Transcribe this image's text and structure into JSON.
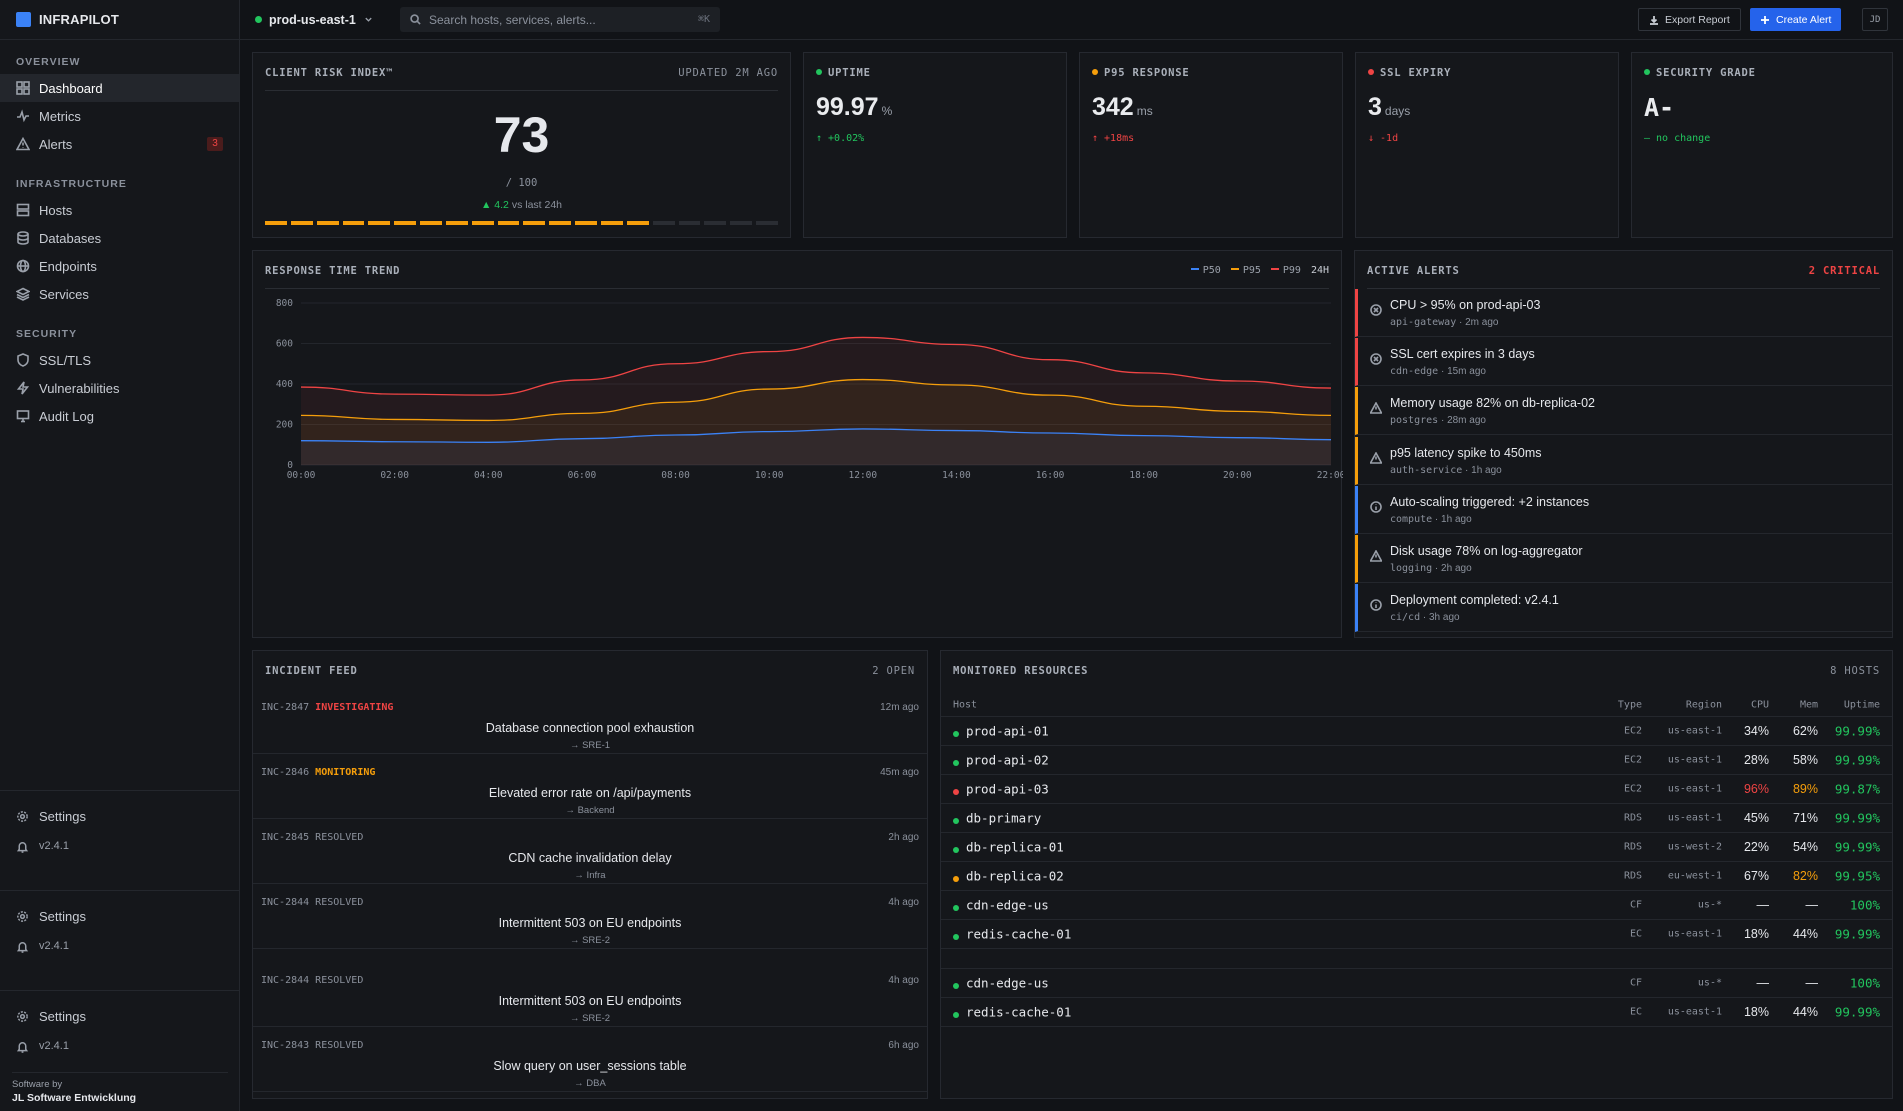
{
  "brand": {
    "name": "INFRAPILOT"
  },
  "sidebar": {
    "sections": [
      {
        "title": "OVERVIEW",
        "items": [
          {
            "label": "Dashboard"
          },
          {
            "label": "Metrics"
          },
          {
            "label": "Alerts",
            "badge": "3"
          }
        ]
      },
      {
        "title": "INFRASTRUCTURE",
        "items": [
          {
            "label": "Hosts"
          },
          {
            "label": "Databases"
          },
          {
            "label": "Endpoints"
          },
          {
            "label": "Services"
          }
        ]
      },
      {
        "title": "SECURITY",
        "items": [
          {
            "label": "SSL/TLS"
          },
          {
            "label": "Vulnerabilities"
          },
          {
            "label": "Audit Log"
          }
        ]
      }
    ],
    "settings_label": "Settings",
    "version": "v2.4.1",
    "footer_line1": "Software by",
    "footer_line2": "JL Software Entwicklung"
  },
  "topbar": {
    "env": "prod-us-east-1",
    "search_placeholder": "Search hosts, services, alerts...",
    "shortcut": "⌘K",
    "export_label": "Export Report",
    "create_label": "Create Alert",
    "avatar": "JD"
  },
  "risk": {
    "title": "CLIENT RISK INDEX™",
    "updated": "UPDATED 2M AGO",
    "value": "73",
    "max": "/ 100",
    "delta": "▲ 4.2",
    "delta_suffix": "vs last 24h",
    "score_fraction": 0.73
  },
  "kpis": [
    {
      "title": "UPTIME",
      "value": "99.97",
      "unit": "%",
      "delta": "↑ +0.02%",
      "status": "green",
      "delta_dir": "up"
    },
    {
      "title": "P95 RESPONSE",
      "value": "342",
      "unit": "ms",
      "delta": "↑ +18ms",
      "status": "amber",
      "delta_dir": "down"
    },
    {
      "title": "SSL EXPIRY",
      "value": "3",
      "unit": "days",
      "delta": "↓ -1d",
      "status": "red",
      "delta_dir": "down"
    },
    {
      "title": "SECURITY GRADE",
      "value": "A-",
      "unit": "",
      "delta": "— no change",
      "status": "green",
      "delta_dir": "up"
    }
  ],
  "chart": {
    "title": "RESPONSE TIME TREND",
    "range": "24H"
  },
  "chart_data": {
    "type": "area",
    "x": [
      "00:00",
      "02:00",
      "04:00",
      "06:00",
      "08:00",
      "10:00",
      "12:00",
      "14:00",
      "16:00",
      "18:00",
      "20:00",
      "22:00"
    ],
    "ylim": [
      0,
      800
    ],
    "yticks": [
      0,
      200,
      400,
      600,
      800
    ],
    "series": [
      {
        "name": "P50",
        "color": "#3b82f6",
        "values": [
          120,
          115,
          112,
          130,
          148,
          165,
          178,
          170,
          158,
          145,
          135,
          125
        ]
      },
      {
        "name": "P95",
        "color": "#f59e0b",
        "values": [
          245,
          225,
          220,
          255,
          310,
          375,
          422,
          395,
          345,
          290,
          265,
          245
        ]
      },
      {
        "name": "P99",
        "color": "#ef4444",
        "values": [
          385,
          350,
          345,
          420,
          500,
          560,
          630,
          595,
          520,
          455,
          415,
          380
        ]
      }
    ]
  },
  "alerts": {
    "title": "ACTIVE ALERTS",
    "summary": "2 CRITICAL",
    "items": [
      {
        "title": "CPU > 95% on prod-api-03",
        "source": "api-gateway",
        "time": "2m ago",
        "level": "critical",
        "icon": "x-circle-icon"
      },
      {
        "title": "SSL cert expires in 3 days",
        "source": "cdn-edge",
        "time": "15m ago",
        "level": "critical",
        "icon": "x-circle-icon"
      },
      {
        "title": "Memory usage 82% on db-replica-02",
        "source": "postgres",
        "time": "28m ago",
        "level": "warning",
        "icon": "warning-triangle-icon"
      },
      {
        "title": "p95 latency spike to 450ms",
        "source": "auth-service",
        "time": "1h ago",
        "level": "warning",
        "icon": "warning-triangle-icon"
      },
      {
        "title": "Auto-scaling triggered: +2 instances",
        "source": "compute",
        "time": "1h ago",
        "level": "info",
        "icon": "info-circle-icon"
      },
      {
        "title": "Disk usage 78% on log-aggregator",
        "source": "logging",
        "time": "2h ago",
        "level": "warning",
        "icon": "warning-triangle-icon"
      },
      {
        "title": "Deployment completed: v2.4.1",
        "source": "ci/cd",
        "time": "3h ago",
        "level": "info",
        "icon": "info-circle-icon"
      }
    ]
  },
  "incidents": {
    "title": "INCIDENT FEED",
    "summary": "2 OPEN",
    "items": [
      {
        "id": "INC-2847",
        "status": "INVESTIGATING",
        "time": "12m ago",
        "title": "Database connection pool exhaustion",
        "team": "→ SRE-1"
      },
      {
        "id": "INC-2846",
        "status": "MONITORING",
        "time": "45m ago",
        "title": "Elevated error rate on /api/payments",
        "team": "→ Backend"
      },
      {
        "id": "INC-2845",
        "status": "RESOLVED",
        "time": "2h ago",
        "title": "CDN cache invalidation delay",
        "team": "→ Infra"
      },
      {
        "id": "INC-2844",
        "status": "RESOLVED",
        "time": "4h ago",
        "title": "Intermittent 503 on EU endpoints",
        "team": "→ SRE-2"
      },
      {
        "id": "INC-2844",
        "status": "RESOLVED",
        "time": "4h ago",
        "title": "Intermittent 503 on EU endpoints",
        "team": "→ SRE-2"
      },
      {
        "id": "INC-2843",
        "status": "RESOLVED",
        "time": "6h ago",
        "title": "Slow query on user_sessions table",
        "team": "→ DBA"
      }
    ]
  },
  "resources": {
    "title": "MONITORED RESOURCES",
    "summary": "8 HOSTS",
    "columns": [
      "Host",
      "Type",
      "Region",
      "CPU",
      "Mem",
      "Uptime"
    ],
    "rows": [
      {
        "host": "prod-api-01",
        "type": "EC2",
        "region": "us-east-1",
        "cpu": "34%",
        "mem": "62%",
        "uptime": "99.99%",
        "status": "green"
      },
      {
        "host": "prod-api-02",
        "type": "EC2",
        "region": "us-east-1",
        "cpu": "28%",
        "mem": "58%",
        "uptime": "99.99%",
        "status": "green"
      },
      {
        "host": "prod-api-03",
        "type": "EC2",
        "region": "us-east-1",
        "cpu": "96%",
        "mem": "89%",
        "uptime": "99.87%",
        "status": "red"
      },
      {
        "host": "db-primary",
        "type": "RDS",
        "region": "us-east-1",
        "cpu": "45%",
        "mem": "71%",
        "uptime": "99.99%",
        "status": "green"
      },
      {
        "host": "db-replica-01",
        "type": "RDS",
        "region": "us-west-2",
        "cpu": "22%",
        "mem": "54%",
        "uptime": "99.99%",
        "status": "green"
      },
      {
        "host": "db-replica-02",
        "type": "RDS",
        "region": "eu-west-1",
        "cpu": "67%",
        "mem": "82%",
        "uptime": "99.95%",
        "status": "amber"
      },
      {
        "host": "cdn-edge-us",
        "type": "CF",
        "region": "us-*",
        "cpu": "—",
        "mem": "—",
        "uptime": "100%",
        "status": "green"
      },
      {
        "host": "redis-cache-01",
        "type": "EC",
        "region": "us-east-1",
        "cpu": "18%",
        "mem": "44%",
        "uptime": "99.99%",
        "status": "green"
      },
      {
        "host": "",
        "type": "",
        "region": "",
        "cpu": "",
        "mem": "",
        "uptime": "",
        "status": ""
      },
      {
        "host": "cdn-edge-us",
        "type": "CF",
        "region": "us-*",
        "cpu": "—",
        "mem": "—",
        "uptime": "100%",
        "status": "green"
      },
      {
        "host": "redis-cache-01",
        "type": "EC",
        "region": "us-east-1",
        "cpu": "18%",
        "mem": "44%",
        "uptime": "99.99%",
        "status": "green"
      }
    ]
  },
  "colors": {
    "green": "#22c55e",
    "amber": "#f59e0b",
    "red": "#ef4444",
    "blue": "#3b82f6",
    "accent": "#2563eb"
  }
}
